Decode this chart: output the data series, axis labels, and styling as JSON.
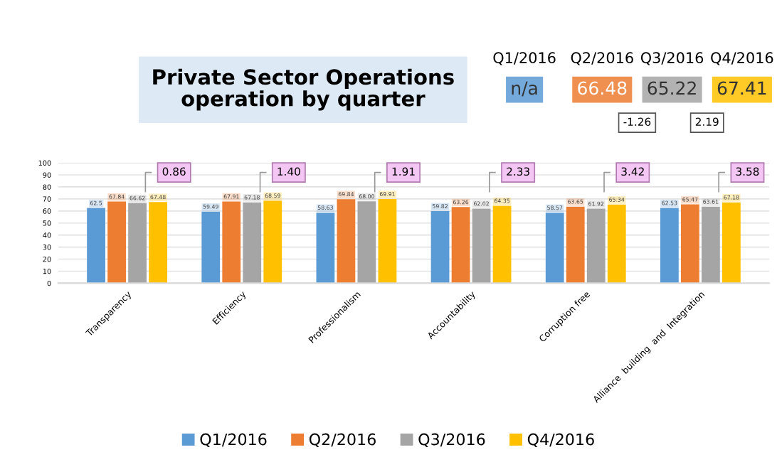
{
  "chart_data": {
    "type": "bar",
    "title": "Private Sector Operations\noperation by quarter",
    "categories": [
      "Transparency",
      "Efficiency",
      "Professionalism",
      "Accountability",
      "Corruption free",
      "Alliance  building  and  Integration"
    ],
    "series": [
      {
        "name": "Q1/2016",
        "color": "#5b9bd5",
        "values": [
          62.5,
          59.49,
          58.63,
          59.82,
          58.57,
          62.53
        ],
        "value_labels": [
          "62.5",
          "59.49",
          "58.63",
          "59.82",
          "58.57",
          "62.53"
        ]
      },
      {
        "name": "Q2/2016",
        "color": "#ed7d31",
        "values": [
          67.84,
          67.91,
          69.84,
          63.26,
          63.65,
          65.47
        ],
        "value_labels": [
          "67.84",
          "67.91",
          "69.84",
          "63.26",
          "63.65",
          "65.47"
        ]
      },
      {
        "name": "Q3/2016",
        "color": "#a5a5a5",
        "values": [
          66.62,
          67.18,
          68.0,
          62.02,
          61.92,
          63.61
        ],
        "value_labels": [
          "66.62",
          "67.18",
          "68.00",
          "62.02",
          "61.92",
          "63.61"
        ]
      },
      {
        "name": "Q4/2016",
        "color": "#ffc000",
        "values": [
          67.48,
          68.59,
          69.91,
          64.35,
          65.34,
          67.18
        ],
        "value_labels": [
          "67.48",
          "68.59",
          "69.91",
          "64.35",
          "65.34",
          "67.18"
        ]
      }
    ],
    "ylim": [
      0,
      100
    ],
    "yticks": [
      0,
      10,
      20,
      30,
      40,
      50,
      60,
      70,
      80,
      90,
      100
    ],
    "grid": "y",
    "legend": "bottom",
    "annotations": [
      "0.86",
      "1.40",
      "1.91",
      "2.33",
      "3.42",
      "3.58",
      "Q1/2016",
      "n/a",
      "Q2/2016",
      "66.48",
      "Q3/2016",
      "65.22",
      "Q4/2016",
      "67.41",
      "-1.26",
      "2.19"
    ]
  }
}
